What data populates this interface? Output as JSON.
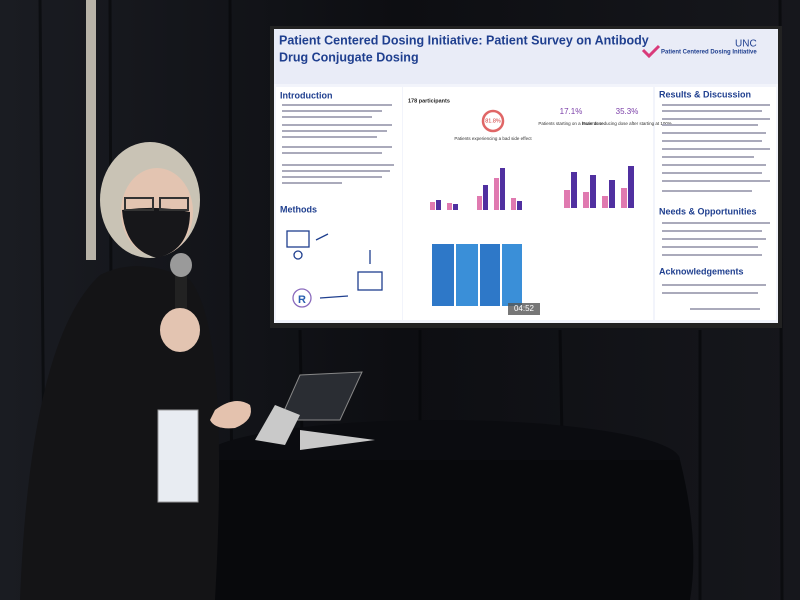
{
  "screen": {
    "title_lines": [
      "Patient Centered Dosing Initiative: Patient Survey on Antibody",
      "Drug Conjugate Dosing"
    ],
    "logo": "Patient Centered Dosing Initiative",
    "institution": "UNC",
    "sections": [
      "Introduction",
      "Methods",
      "Results & Discussion",
      "Needs & Opportunities",
      "Acknowledgements"
    ],
    "participants": "178 participants",
    "side_effect": "81.8%",
    "side_effect_label": "Patients experiencing a bad side effect",
    "lower_dose": "17.1%",
    "lower_dose_label": "Patients starting on a lower dose",
    "reduced": "35.3%",
    "reduced_label": "Patients reducing dose after starting at 100%",
    "timer": "04:52"
  }
}
